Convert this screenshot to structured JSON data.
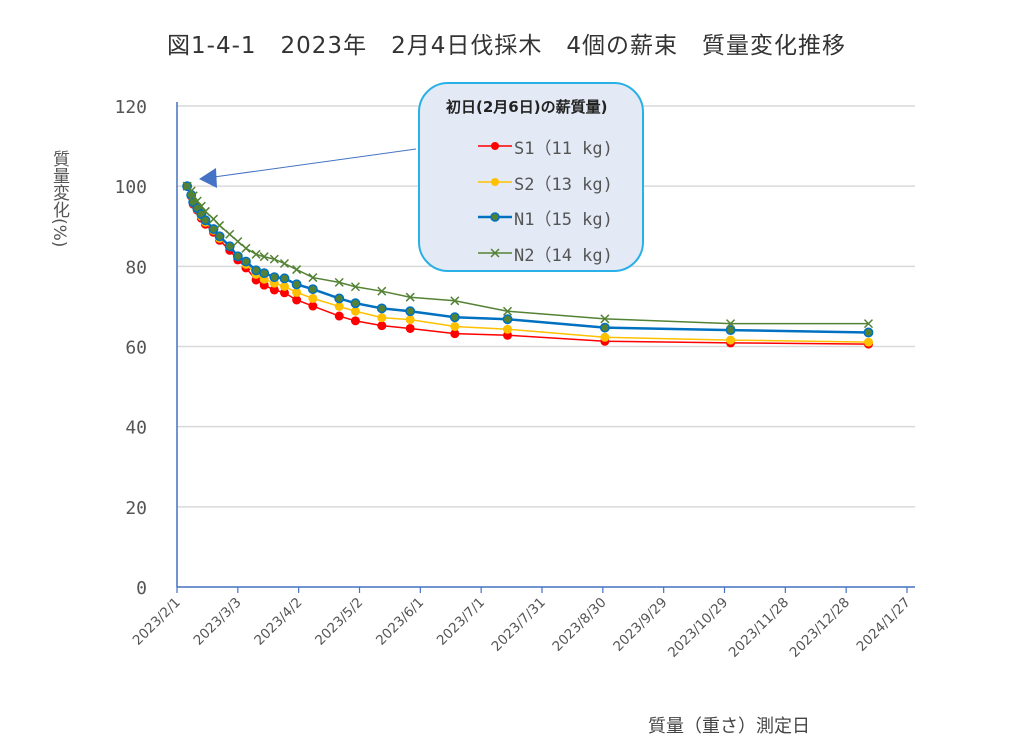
{
  "chart_data": {
    "type": "line",
    "title": "図1-4-1　2023年　2月4日伐採木　4個の薪束　質量変化推移",
    "xlabel": "質量（重さ）測定日",
    "ylabel": "質量変化(%)",
    "ylim": [
      0,
      120
    ],
    "yticks": [
      0,
      20,
      40,
      60,
      80,
      100,
      120
    ],
    "x_start_date": "2023/2/1",
    "xlim_days": [
      0,
      360
    ],
    "xtick_labels": [
      "2023/2/1",
      "2023/3/3",
      "2023/4/2",
      "2023/5/2",
      "2023/6/1",
      "2023/7/1",
      "2023/7/31",
      "2023/8/30",
      "2023/9/29",
      "2023/10/29",
      "2023/11/28",
      "2023/12/28",
      "2024/1/27"
    ],
    "grid": true,
    "legend_title": "初日(2月6日)の薪質量)",
    "legend_placement": "top-center",
    "x_days": [
      5,
      7,
      8,
      10,
      12,
      14,
      18,
      21,
      26,
      30,
      34,
      39,
      43,
      48,
      53,
      59,
      67,
      80,
      88,
      101,
      115,
      137,
      163,
      211,
      273,
      341
    ],
    "series": [
      {
        "name": "S1（11 kg)",
        "color": "#ff0000",
        "marker": "circle",
        "values": [
          100,
          97.5,
          95.5,
          94,
          92,
          90.5,
          88.5,
          86.5,
          84,
          81.6,
          79.6,
          76.6,
          75.3,
          74.1,
          73.4,
          71.6,
          70.1,
          67.6,
          66.4,
          65.2,
          64.5,
          63.2,
          62.8,
          61.3,
          60.9,
          60.6
        ]
      },
      {
        "name": "S2（13 kg)",
        "color": "#ffc000",
        "marker": "circle",
        "values": [
          100,
          97.7,
          95.8,
          94.3,
          92.5,
          91,
          89,
          87,
          85,
          82.5,
          80.5,
          78,
          76.8,
          75.8,
          75,
          73.5,
          72,
          70,
          68.8,
          67.2,
          66.7,
          65,
          64.3,
          62.3,
          61.6,
          61.1
        ]
      },
      {
        "name": "N1（15 kg)",
        "color": "#0070c0",
        "marker": "circle-green",
        "values": [
          100,
          97.8,
          96,
          94.5,
          93,
          91.5,
          89.3,
          87.5,
          85,
          82.5,
          81.2,
          79,
          78.3,
          77.3,
          77,
          75.5,
          74.3,
          72,
          70.8,
          69.5,
          68.8,
          67.3,
          66.8,
          64.7,
          64.1,
          63.5
        ]
      },
      {
        "name": "N2（14 kg)",
        "color": "#548235",
        "marker": "x",
        "values": [
          100,
          98.8,
          97.6,
          96.3,
          95,
          93.7,
          91.8,
          90.2,
          88,
          86.2,
          84.5,
          83,
          82.4,
          81.8,
          80.7,
          79.2,
          77.2,
          76,
          74.9,
          73.8,
          72.3,
          71.4,
          68.8,
          66.9,
          65.7,
          65.7
        ]
      }
    ]
  }
}
